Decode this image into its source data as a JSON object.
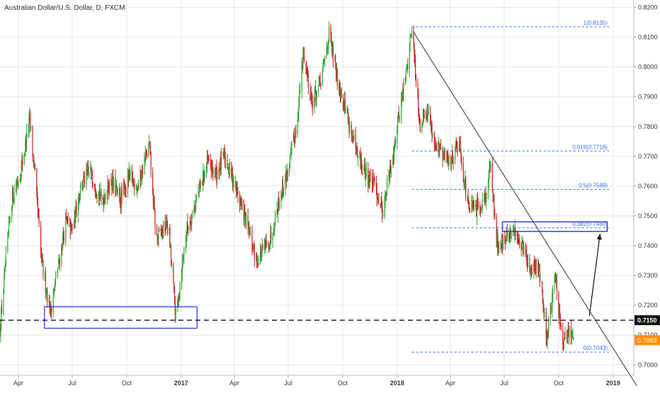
{
  "chart_data": {
    "type": "candlestick",
    "title": "Australian Dollar/U.S. Dollar, D, FXCM",
    "colors": {
      "up": "#3aa63a",
      "down": "#c62828",
      "grid": "#e6e6e6",
      "fib": "#3b6fd6",
      "box": "#2233dd",
      "trend": "#333333",
      "support": "#111111",
      "last_price": "#ff8c00",
      "axis_text": "#333333"
    },
    "ylim": [
      0.6965,
      0.8225
    ],
    "y_ticks": [
      {
        "value": 0.82,
        "label": "0.8200"
      },
      {
        "value": 0.81,
        "label": "0.8100"
      },
      {
        "value": 0.8,
        "label": "0.8000"
      },
      {
        "value": 0.79,
        "label": "0.7900"
      },
      {
        "value": 0.78,
        "label": "0.7800"
      },
      {
        "value": 0.77,
        "label": "0.7700"
      },
      {
        "value": 0.76,
        "label": "0.7600"
      },
      {
        "value": 0.75,
        "label": "0.7500"
      },
      {
        "value": 0.74,
        "label": "0.7400"
      },
      {
        "value": 0.73,
        "label": "0.7300"
      },
      {
        "value": 0.72,
        "label": "0.7200"
      },
      {
        "value": 0.71,
        "label": "0.7100"
      },
      {
        "value": 0.7,
        "label": "0.7000"
      }
    ],
    "xlim": [
      "2016-03-01",
      "2019-02-05"
    ],
    "x_ticks": [
      {
        "date": "2016-04-01",
        "label": "Apr",
        "bold": false
      },
      {
        "date": "2016-07-01",
        "label": "Jul",
        "bold": false
      },
      {
        "date": "2016-10-01",
        "label": "Oct",
        "bold": false
      },
      {
        "date": "2017-01-01",
        "label": "2017",
        "bold": true
      },
      {
        "date": "2017-04-01",
        "label": "Apr",
        "bold": false
      },
      {
        "date": "2017-07-01",
        "label": "Jul",
        "bold": false
      },
      {
        "date": "2017-10-01",
        "label": "Oct",
        "bold": false
      },
      {
        "date": "2018-01-01",
        "label": "2018",
        "bold": true
      },
      {
        "date": "2018-04-01",
        "label": "Apr",
        "bold": false
      },
      {
        "date": "2018-07-01",
        "label": "Jul",
        "bold": false
      },
      {
        "date": "2018-10-01",
        "label": "Oct",
        "bold": false
      },
      {
        "date": "2019-01-01",
        "label": "2019",
        "bold": true
      }
    ],
    "price_path": [
      [
        "2016-03-01",
        0.712
      ],
      [
        "2016-03-20",
        0.755
      ],
      [
        "2016-04-05",
        0.765
      ],
      [
        "2016-04-20",
        0.782
      ],
      [
        "2016-04-28",
        0.766
      ],
      [
        "2016-05-10",
        0.735
      ],
      [
        "2016-05-25",
        0.718
      ],
      [
        "2016-06-05",
        0.73
      ],
      [
        "2016-06-20",
        0.748
      ],
      [
        "2016-07-01",
        0.745
      ],
      [
        "2016-07-15",
        0.76
      ],
      [
        "2016-08-01",
        0.765
      ],
      [
        "2016-08-20",
        0.755
      ],
      [
        "2016-09-05",
        0.762
      ],
      [
        "2016-09-20",
        0.755
      ],
      [
        "2016-10-05",
        0.763
      ],
      [
        "2016-10-20",
        0.76
      ],
      [
        "2016-11-08",
        0.774
      ],
      [
        "2016-11-20",
        0.742
      ],
      [
        "2016-12-10",
        0.748
      ],
      [
        "2016-12-23",
        0.716
      ],
      [
        "2017-01-10",
        0.745
      ],
      [
        "2017-01-31",
        0.758
      ],
      [
        "2017-02-15",
        0.768
      ],
      [
        "2017-03-01",
        0.764
      ],
      [
        "2017-03-15",
        0.77
      ],
      [
        "2017-03-31",
        0.762
      ],
      [
        "2017-04-15",
        0.752
      ],
      [
        "2017-05-09",
        0.735
      ],
      [
        "2017-05-31",
        0.742
      ],
      [
        "2017-06-15",
        0.755
      ],
      [
        "2017-06-30",
        0.765
      ],
      [
        "2017-07-15",
        0.78
      ],
      [
        "2017-07-27",
        0.805
      ],
      [
        "2017-08-10",
        0.788
      ],
      [
        "2017-08-25",
        0.795
      ],
      [
        "2017-09-08",
        0.811
      ],
      [
        "2017-09-20",
        0.798
      ],
      [
        "2017-10-10",
        0.783
      ],
      [
        "2017-10-25",
        0.77
      ],
      [
        "2017-11-10",
        0.764
      ],
      [
        "2017-11-25",
        0.76
      ],
      [
        "2017-12-08",
        0.752
      ],
      [
        "2017-12-20",
        0.765
      ],
      [
        "2018-01-05",
        0.785
      ],
      [
        "2018-01-18",
        0.8
      ],
      [
        "2018-01-26",
        0.8135
      ],
      [
        "2018-02-09",
        0.78
      ],
      [
        "2018-02-20",
        0.787
      ],
      [
        "2018-03-05",
        0.775
      ],
      [
        "2018-03-20",
        0.77
      ],
      [
        "2018-04-01",
        0.768
      ],
      [
        "2018-04-15",
        0.776
      ],
      [
        "2018-05-01",
        0.753
      ],
      [
        "2018-05-15",
        0.752
      ],
      [
        "2018-05-31",
        0.757
      ],
      [
        "2018-06-07",
        0.767
      ],
      [
        "2018-06-20",
        0.74
      ],
      [
        "2018-07-05",
        0.742
      ],
      [
        "2018-07-20",
        0.745
      ],
      [
        "2018-08-05",
        0.738
      ],
      [
        "2018-08-15",
        0.73
      ],
      [
        "2018-08-28",
        0.734
      ],
      [
        "2018-09-11",
        0.709
      ],
      [
        "2018-09-25",
        0.73
      ],
      [
        "2018-10-08",
        0.705
      ],
      [
        "2018-10-18",
        0.712
      ],
      [
        "2018-10-26",
        0.7083
      ]
    ],
    "support_line": {
      "value": 0.715,
      "label": "0.7150"
    },
    "last_price": {
      "value": 0.7083,
      "label": "0.7083"
    },
    "fib_levels": [
      {
        "ratio": "1",
        "value": 0.8135,
        "label": "1(0.8135)"
      },
      {
        "ratio": "0.618",
        "value": 0.7718,
        "label": "0.618(0.7718)"
      },
      {
        "ratio": "0.5",
        "value": 0.7589,
        "label": "0.5(0.7589)"
      },
      {
        "ratio": "0.382",
        "value": 0.746,
        "label": "0.382(0.7460)"
      },
      {
        "ratio": "0",
        "value": 0.7043,
        "label": "0(0.7043)"
      }
    ],
    "fib_range": [
      "2018-01-26",
      "2018-12-25"
    ],
    "trendline": [
      [
        "2018-01-28",
        0.812
      ],
      [
        "2019-02-10",
        0.693
      ]
    ],
    "support_box": {
      "from": "2016-05-15",
      "to": "2017-01-28",
      "top": 0.7195,
      "bottom": 0.7123
    },
    "target_box": {
      "from": "2018-06-28",
      "to": "2018-12-22",
      "top": 0.748,
      "bottom": 0.7448
    },
    "arrow": {
      "from": [
        "2018-11-22",
        0.7165
      ],
      "to": [
        "2018-12-10",
        0.744
      ]
    },
    "grid": true
  }
}
